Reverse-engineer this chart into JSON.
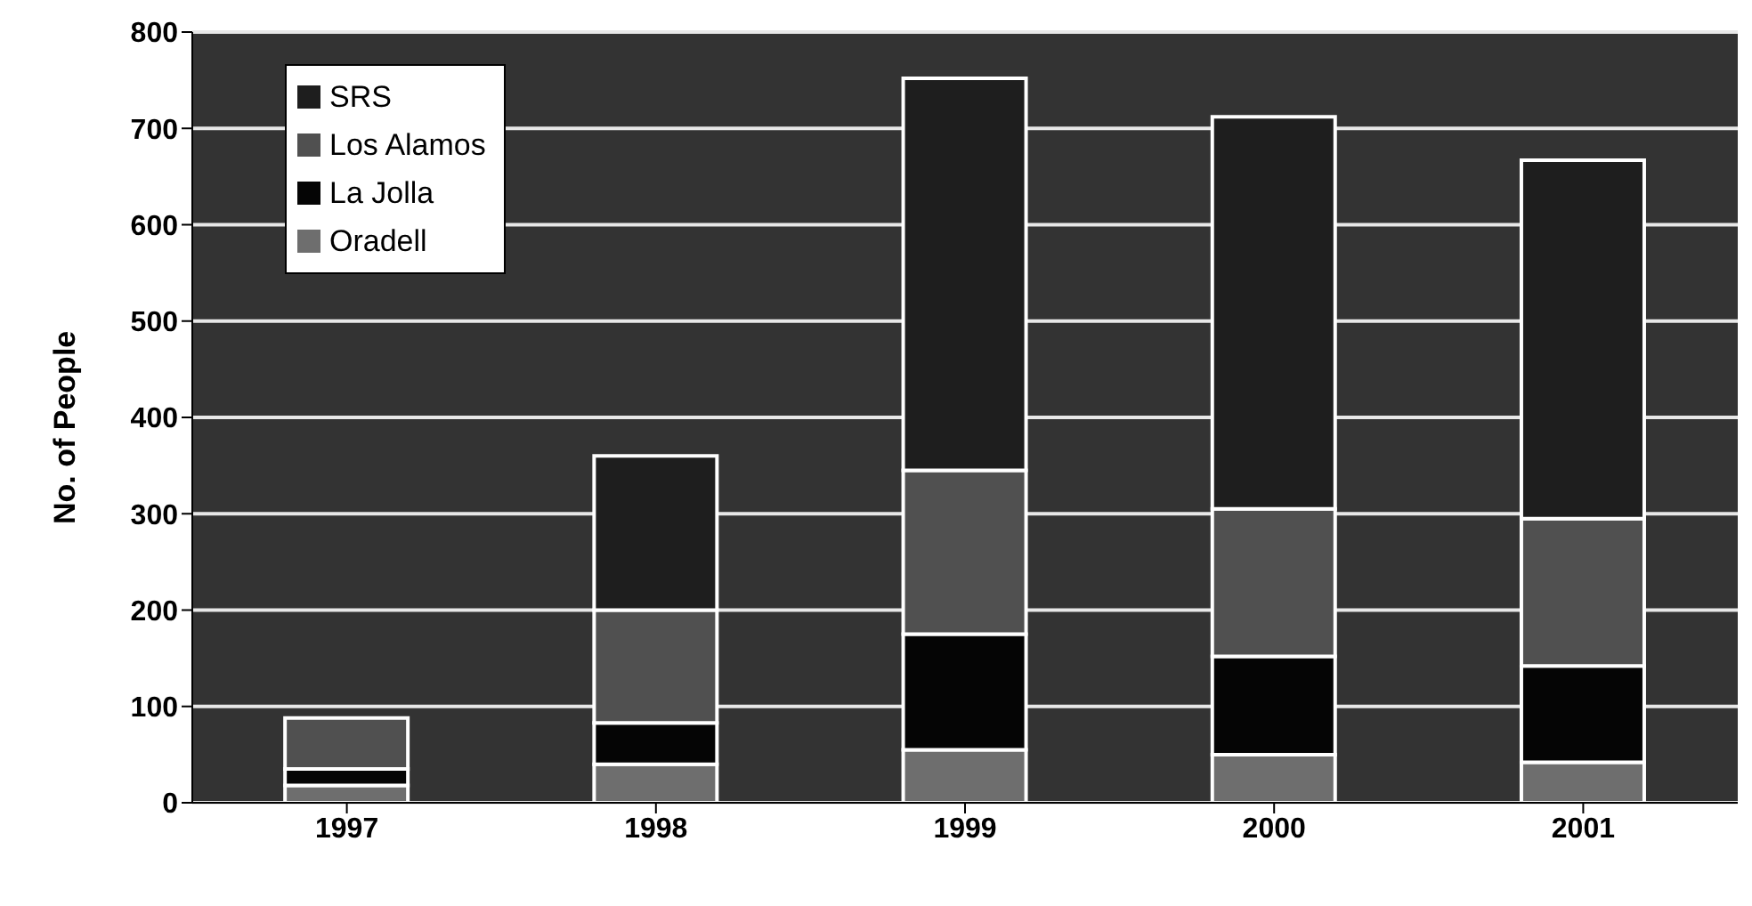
{
  "chart_data": {
    "type": "bar",
    "stacked": true,
    "ylabel": "No. of People",
    "categories": [
      "1997",
      "1998",
      "1999",
      "2000",
      "2001"
    ],
    "series": [
      {
        "name": "Oradell",
        "color": "#6e6e6e",
        "values": [
          18,
          40,
          55,
          50,
          42
        ]
      },
      {
        "name": "La Jolla",
        "color": "#050505",
        "values": [
          17,
          43,
          120,
          102,
          100
        ]
      },
      {
        "name": "Los Alamos",
        "color": "#505050",
        "values": [
          53,
          117,
          170,
          153,
          153
        ]
      },
      {
        "name": "SRS",
        "color": "#1e1e1e",
        "values": [
          0,
          160,
          407,
          407,
          372
        ]
      }
    ],
    "ylim": [
      0,
      800
    ],
    "yticks": [
      0,
      100,
      200,
      300,
      400,
      500,
      600,
      700,
      800
    ],
    "grid": "y",
    "legend": "top left"
  }
}
